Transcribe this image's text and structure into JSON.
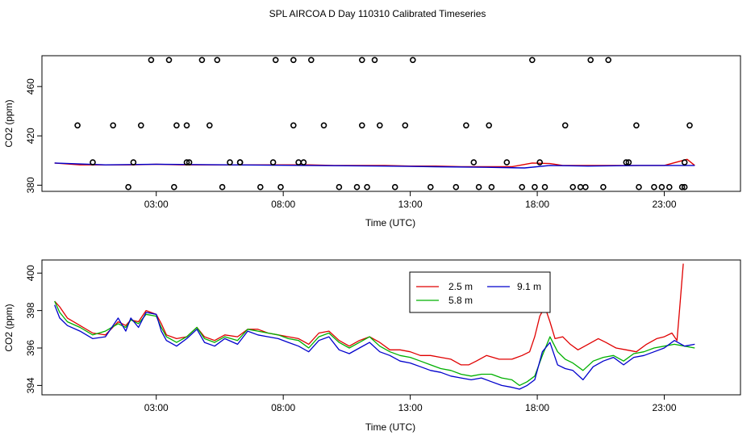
{
  "title": "SPL AIRCOA D  Day 110310  Calibrated Timeseries",
  "colors": {
    "series_2_5": "#e00000",
    "series_5_8": "#00b000",
    "series_9_1": "#0000cc",
    "points": "#000000"
  },
  "chart_data": [
    {
      "type": "scatter",
      "title": "SPL AIRCOA D  Day 110310  Calibrated Timeseries",
      "xlabel": "Time (UTC)",
      "ylabel": "CO2 (ppm)",
      "xlim": [
        -1.5,
        26.0
      ],
      "ylim": [
        375,
        485
      ],
      "xticks": [
        3,
        8,
        13,
        18,
        23
      ],
      "xtick_labels": [
        "03:00",
        "08:00",
        "13:00",
        "18:00",
        "23:00"
      ],
      "yticks": [
        380,
        420,
        460
      ],
      "ytick_labels": [
        "380",
        "420",
        "460"
      ],
      "points": {
        "x": [
          2.1,
          4.3,
          5.9,
          7.6,
          8.8,
          8.6,
          10.9,
          11.3,
          13.8,
          14.8,
          17.4,
          17.9,
          18.3,
          19.7,
          22.0,
          22.6,
          23.7,
          0.5,
          1.9,
          3.7,
          5.6,
          7.1,
          7.9,
          10.2,
          12.4,
          15.7,
          16.2,
          19.4,
          19.9,
          20.6,
          22.9,
          23.2,
          23.8,
          1.3,
          3.8,
          4.2,
          4.2,
          5.1,
          6.3,
          6.3,
          8.4,
          9.6,
          11.1,
          12.8,
          15.5,
          16.8,
          18.1,
          21.5,
          21.6,
          23.8,
          2.8,
          4.8,
          7.7,
          11.6,
          11.1,
          17.8,
          20.1,
          -0.1,
          2.4,
          3.5,
          5.4,
          8.4,
          9.1,
          11.8,
          13.1,
          15.2,
          16.1,
          19.1,
          20.8,
          21.9,
          24.0
        ],
        "y": [
          398.5,
          398.5,
          398.5,
          398.5,
          398.5,
          398.5,
          378.5,
          378.5,
          378.5,
          378.5,
          378.5,
          378.5,
          378.5,
          378.5,
          378.5,
          378.5,
          378.5,
          398.5,
          378.5,
          378.5,
          378.5,
          378.5,
          378.5,
          378.5,
          378.5,
          378.5,
          378.5,
          378.5,
          378.5,
          378.5,
          378.5,
          378.5,
          378.5,
          428.5,
          428.5,
          428.5,
          398.5,
          428.5,
          398.5,
          398.5,
          428.5,
          428.5,
          428.5,
          428.5,
          398.5,
          398.5,
          398.5,
          398.5,
          398.5,
          398.5,
          481.5,
          481.5,
          481.5,
          481.5,
          481.5,
          481.5,
          481.5,
          428.5,
          428.5,
          481.5,
          481.5,
          481.5,
          481.5,
          428.5,
          481.5,
          428.5,
          428.5,
          428.5,
          481.5,
          428.5,
          428.5
        ]
      },
      "series": [
        {
          "name": "2.5 m",
          "x": [
            -1.0,
            0.0,
            1.0,
            2.0,
            3.0,
            4.0,
            5.0,
            6.0,
            7.0,
            8.0,
            9.0,
            10.0,
            11.0,
            12.0,
            13.0,
            14.0,
            15.0,
            16.0,
            17.0,
            17.8,
            18.5,
            19.0,
            20.0,
            21.0,
            22.0,
            23.0,
            23.9,
            24.2
          ],
          "y": [
            398,
            396.5,
            396.5,
            396.5,
            397,
            396.5,
            396.5,
            396.5,
            396.5,
            396.5,
            396.5,
            396,
            396,
            396,
            395.5,
            395.5,
            395,
            395,
            395,
            398,
            397.5,
            396,
            396,
            396,
            396,
            396,
            401,
            396
          ]
        },
        {
          "name": "9.1 m",
          "x": [
            -1.0,
            1.0,
            3.0,
            6.0,
            9.0,
            12.0,
            14.0,
            16.0,
            17.5,
            18.5,
            20.0,
            22.0,
            24.2
          ],
          "y": [
            398,
            396.5,
            397,
            396.5,
            396,
            395.5,
            395,
            394.5,
            394,
            396,
            395.5,
            396,
            396
          ]
        }
      ]
    },
    {
      "type": "line",
      "xlabel": "Time (UTC)",
      "ylabel": "CO2 (ppm)",
      "xlim": [
        -1.5,
        26.0
      ],
      "ylim": [
        393.5,
        400.7
      ],
      "xticks": [
        3,
        8,
        13,
        18,
        23
      ],
      "xtick_labels": [
        "03:00",
        "08:00",
        "13:00",
        "18:00",
        "23:00"
      ],
      "yticks": [
        394,
        396,
        398,
        400
      ],
      "ytick_labels": [
        "394",
        "396",
        "398",
        "400"
      ],
      "legend": {
        "position": "top-right-center",
        "entries": [
          "2.5 m",
          "9.1 m",
          "5.8 m"
        ]
      },
      "series": [
        {
          "name": "2.5 m",
          "x": [
            -1.0,
            -0.8,
            -0.5,
            0.0,
            0.5,
            1.0,
            1.5,
            1.8,
            2.0,
            2.3,
            2.6,
            3.0,
            3.2,
            3.4,
            3.8,
            4.2,
            4.6,
            4.9,
            5.3,
            5.7,
            6.2,
            6.6,
            7.0,
            7.4,
            7.8,
            8.2,
            8.6,
            9.0,
            9.4,
            9.8,
            10.2,
            10.6,
            11.0,
            11.4,
            11.8,
            12.2,
            12.6,
            13.0,
            13.4,
            13.8,
            14.2,
            14.6,
            15.0,
            15.3,
            15.6,
            16.0,
            16.5,
            17.0,
            17.4,
            17.7,
            17.9,
            18.1,
            18.3,
            18.5,
            18.7,
            19.0,
            19.3,
            19.6,
            20.0,
            20.4,
            20.7,
            21.1,
            21.5,
            21.9,
            22.3,
            22.7,
            23.0,
            23.3,
            23.5,
            23.6,
            23.75
          ],
          "y": [
            398.5,
            398.2,
            397.6,
            397.2,
            396.8,
            396.7,
            397.4,
            397.2,
            397.5,
            397.4,
            398.0,
            397.8,
            397.3,
            396.7,
            396.5,
            396.6,
            397.1,
            396.6,
            396.4,
            396.7,
            396.6,
            397.0,
            397.0,
            396.8,
            396.7,
            396.6,
            396.5,
            396.2,
            396.8,
            396.9,
            396.4,
            396.1,
            396.4,
            396.6,
            396.3,
            395.9,
            395.9,
            395.8,
            395.6,
            395.6,
            395.5,
            395.4,
            395.1,
            395.1,
            395.3,
            395.6,
            395.4,
            395.4,
            395.6,
            395.8,
            396.6,
            397.7,
            398.2,
            397.4,
            396.5,
            396.6,
            396.2,
            395.9,
            396.2,
            396.5,
            396.3,
            396.0,
            395.9,
            395.8,
            396.2,
            396.5,
            396.6,
            396.8,
            396.4,
            398.0,
            400.5
          ]
        },
        {
          "name": "5.8 m",
          "x": [
            -1.0,
            -0.8,
            -0.5,
            0.0,
            0.5,
            1.0,
            1.5,
            1.8,
            2.0,
            2.3,
            2.6,
            3.0,
            3.2,
            3.4,
            3.8,
            4.2,
            4.6,
            4.9,
            5.3,
            5.7,
            6.2,
            6.6,
            7.0,
            7.4,
            7.8,
            8.2,
            8.6,
            9.0,
            9.4,
            9.8,
            10.2,
            10.6,
            11.0,
            11.4,
            11.8,
            12.2,
            12.6,
            13.0,
            13.4,
            13.8,
            14.2,
            14.6,
            15.0,
            15.4,
            15.8,
            16.2,
            16.6,
            17.0,
            17.3,
            17.6,
            17.9,
            18.2,
            18.5,
            18.8,
            19.1,
            19.4,
            19.8,
            20.2,
            20.6,
            21.0,
            21.4,
            21.8,
            22.2,
            22.6,
            23.0,
            23.4,
            23.8,
            24.2
          ],
          "y": [
            398.5,
            397.9,
            397.4,
            397.1,
            396.7,
            396.9,
            397.3,
            397.1,
            397.5,
            397.3,
            397.8,
            397.7,
            397.1,
            396.6,
            396.3,
            396.6,
            397.1,
            396.5,
            396.3,
            396.6,
            396.4,
            397.0,
            396.9,
            396.8,
            396.7,
            396.5,
            396.4,
            396.0,
            396.6,
            396.8,
            396.3,
            396.0,
            396.3,
            396.6,
            396.1,
            395.8,
            395.6,
            395.5,
            395.3,
            395.1,
            394.9,
            394.8,
            394.6,
            394.5,
            394.6,
            394.6,
            394.4,
            394.3,
            394.0,
            394.2,
            394.5,
            395.6,
            396.6,
            395.8,
            395.4,
            395.2,
            394.8,
            395.3,
            395.5,
            395.6,
            395.3,
            395.7,
            395.8,
            396.0,
            396.1,
            396.2,
            396.1,
            396.0
          ]
        },
        {
          "name": "9.1 m",
          "x": [
            -1.0,
            -0.8,
            -0.5,
            0.0,
            0.5,
            1.0,
            1.5,
            1.8,
            2.0,
            2.3,
            2.6,
            3.0,
            3.2,
            3.4,
            3.8,
            4.2,
            4.6,
            4.9,
            5.3,
            5.7,
            6.2,
            6.6,
            7.0,
            7.4,
            7.8,
            8.2,
            8.6,
            9.0,
            9.4,
            9.8,
            10.2,
            10.6,
            11.0,
            11.4,
            11.8,
            12.2,
            12.6,
            13.0,
            13.4,
            13.8,
            14.2,
            14.6,
            15.0,
            15.4,
            15.8,
            16.2,
            16.6,
            17.0,
            17.3,
            17.6,
            17.9,
            18.2,
            18.5,
            18.8,
            19.1,
            19.4,
            19.8,
            20.2,
            20.6,
            21.0,
            21.4,
            21.8,
            22.2,
            22.6,
            23.0,
            23.4,
            23.8,
            24.2
          ],
          "y": [
            398.3,
            397.6,
            397.2,
            396.9,
            396.5,
            396.6,
            397.6,
            396.9,
            397.6,
            397.1,
            397.9,
            397.8,
            396.9,
            396.4,
            396.1,
            396.5,
            397.0,
            396.3,
            396.1,
            396.5,
            396.2,
            396.9,
            396.7,
            396.6,
            396.5,
            396.3,
            396.1,
            395.8,
            396.4,
            396.6,
            395.9,
            395.7,
            396.0,
            396.3,
            395.8,
            395.6,
            395.3,
            395.2,
            395.0,
            394.8,
            394.7,
            394.5,
            394.4,
            394.3,
            394.4,
            394.2,
            394.0,
            393.9,
            393.8,
            394.0,
            394.3,
            395.8,
            396.3,
            395.1,
            394.9,
            394.8,
            394.3,
            395.0,
            395.3,
            395.5,
            395.1,
            395.5,
            395.6,
            395.8,
            396.0,
            396.4,
            396.1,
            396.2
          ]
        }
      ]
    }
  ]
}
